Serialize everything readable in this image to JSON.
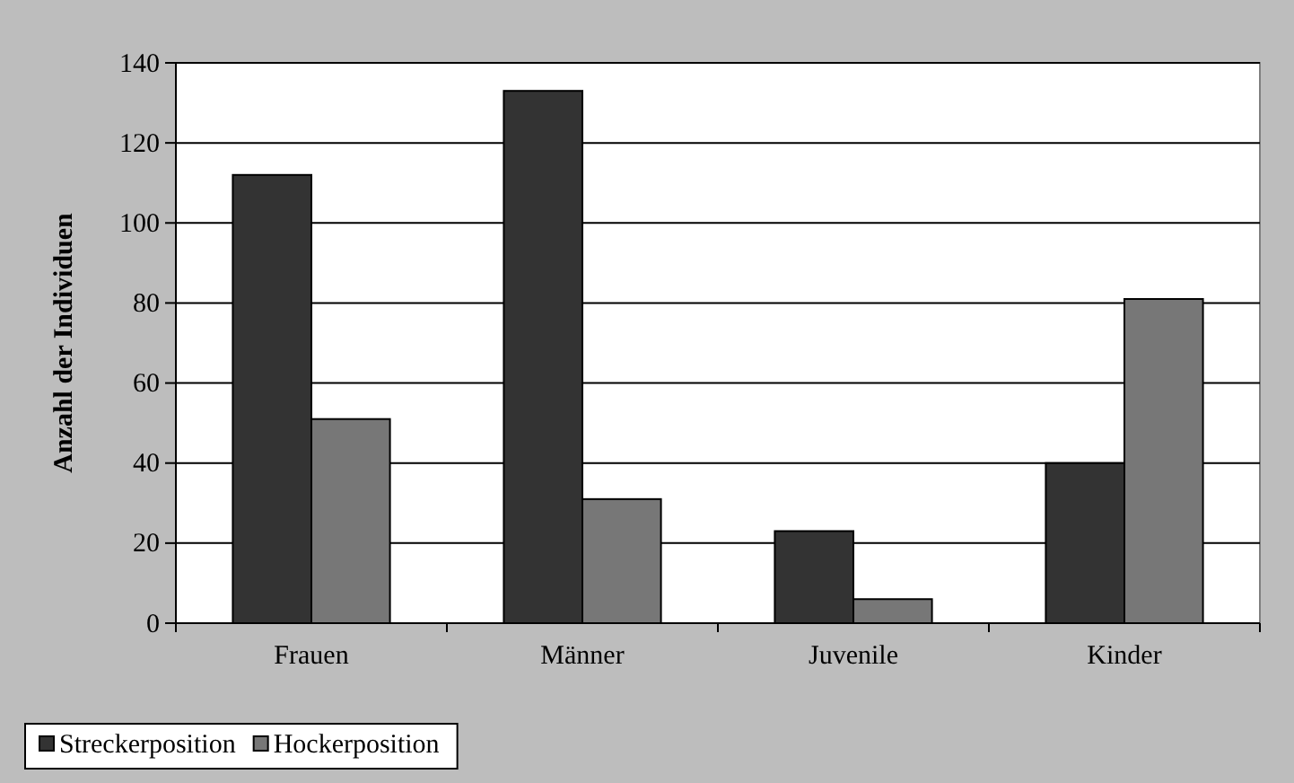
{
  "chart_data": {
    "type": "bar",
    "ylabel": "Anzahl der Individuen",
    "categories": [
      "Frauen",
      "Männer",
      "Juvenile",
      "Kinder"
    ],
    "series": [
      {
        "name": "Streckerposition",
        "color": "#333333",
        "values": [
          112,
          133,
          23,
          40
        ]
      },
      {
        "name": "Hockerposition",
        "color": "#777777",
        "values": [
          51,
          31,
          6,
          81
        ]
      }
    ],
    "ylim": [
      0,
      140
    ],
    "yticks": [
      0,
      20,
      40,
      60,
      80,
      100,
      120,
      140
    ],
    "grid": "y",
    "legend": "bottom left"
  }
}
